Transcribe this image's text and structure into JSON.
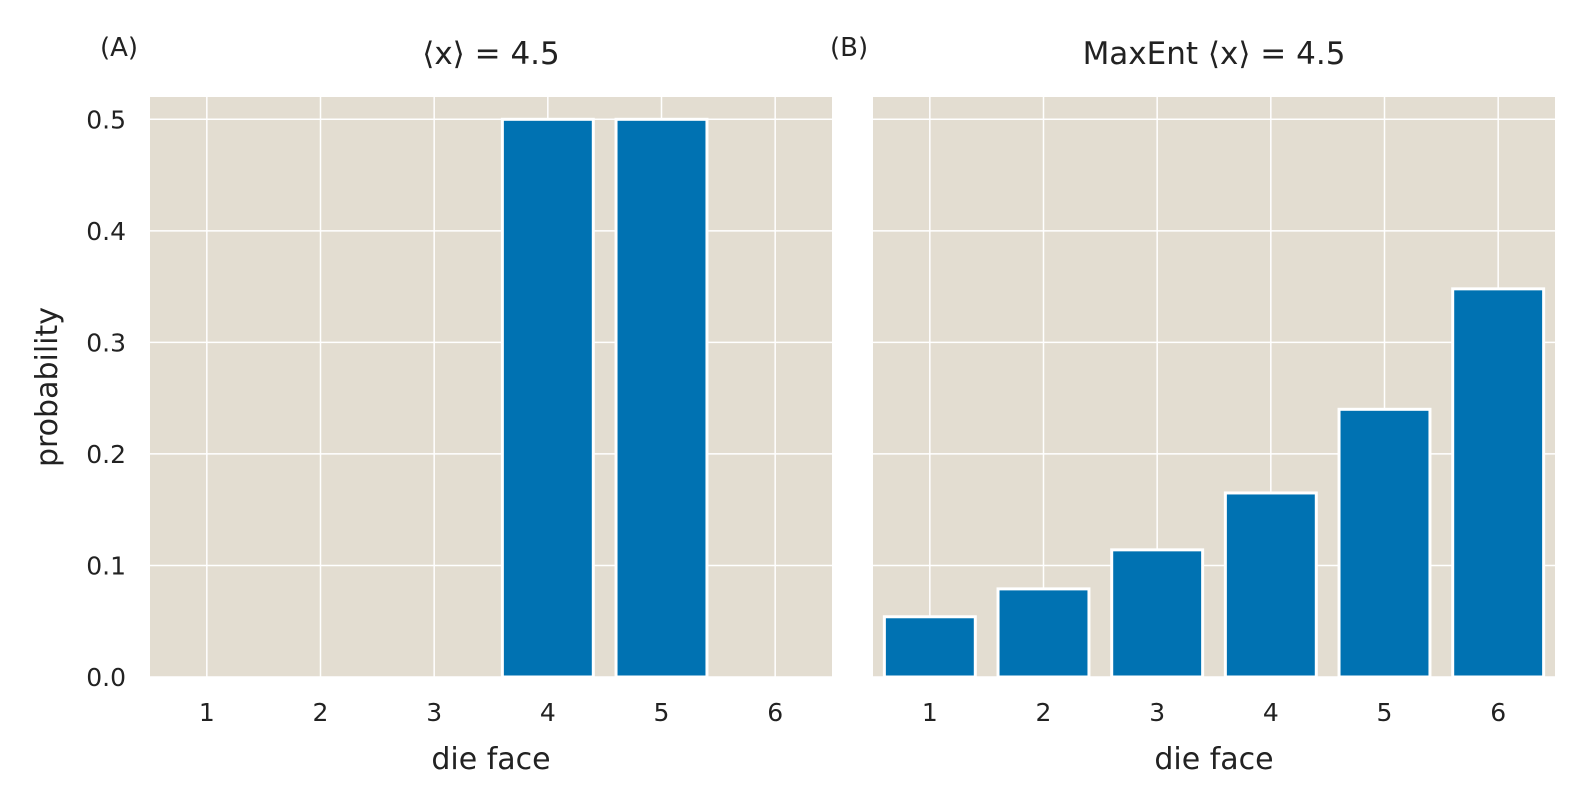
{
  "chart_data": [
    {
      "type": "bar",
      "panel_label": "(A)",
      "title": "⟨x⟩ = 4.5",
      "xlabel": "die face",
      "ylabel": "probability",
      "categories": [
        "1",
        "2",
        "3",
        "4",
        "5",
        "6"
      ],
      "values": [
        0.0,
        0.0,
        0.0,
        0.5,
        0.5,
        0.0
      ],
      "ylim": [
        0,
        0.52
      ],
      "yticks": [
        "0.0",
        "0.1",
        "0.2",
        "0.3",
        "0.4",
        "0.5"
      ],
      "grid": true
    },
    {
      "type": "bar",
      "panel_label": "(B)",
      "title": "MaxEnt ⟨x⟩ = 4.5",
      "xlabel": "die face",
      "ylabel": "",
      "categories": [
        "1",
        "2",
        "3",
        "4",
        "5",
        "6"
      ],
      "values": [
        0.054,
        0.079,
        0.114,
        0.165,
        0.24,
        0.348
      ],
      "ylim": [
        0,
        0.52
      ],
      "yticks": [],
      "grid": true
    }
  ],
  "colors": {
    "bar": "#0072b2",
    "bar_edge": "#ffffff",
    "panel_bg": "#e3ddd1",
    "grid": "#ffffff",
    "text": "#222222"
  }
}
